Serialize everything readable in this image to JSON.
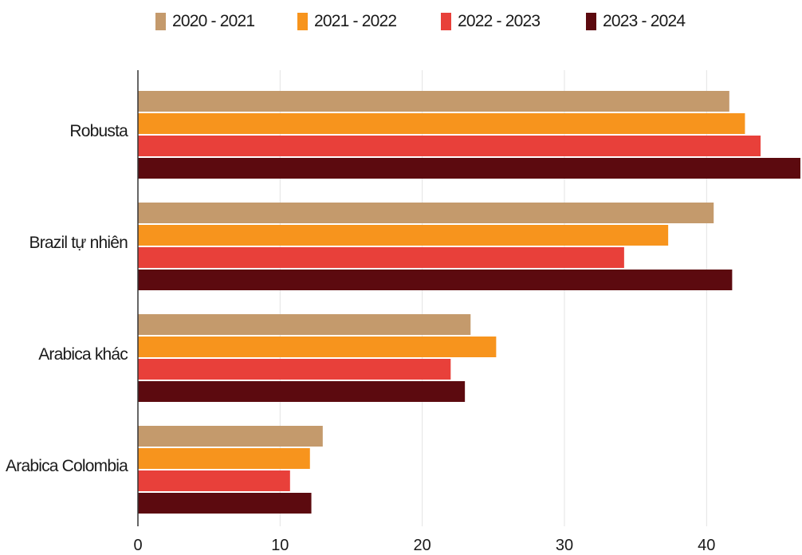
{
  "chart_data": {
    "type": "bar",
    "orientation": "horizontal",
    "categories": [
      "Robusta",
      "Brazil tự nhiên",
      "Arabica khác",
      "Arabica Colombia"
    ],
    "series": [
      {
        "name": "2020 - 2021",
        "color": "#c49a6c",
        "values": [
          41.6,
          40.5,
          23.4,
          13.0
        ]
      },
      {
        "name": "2021 - 2022",
        "color": "#f7941d",
        "values": [
          42.7,
          37.3,
          25.2,
          12.1
        ]
      },
      {
        "name": "2022 - 2023",
        "color": "#e8403a",
        "values": [
          43.8,
          34.2,
          22.0,
          10.7
        ]
      },
      {
        "name": "2023 - 2024",
        "color": "#5c0a0f",
        "values": [
          46.6,
          41.8,
          23.0,
          12.2
        ]
      }
    ],
    "x_ticks": [
      0,
      10,
      20,
      30,
      40
    ],
    "xlim": [
      0,
      46.6
    ],
    "grid": true,
    "legend_position": "top"
  }
}
